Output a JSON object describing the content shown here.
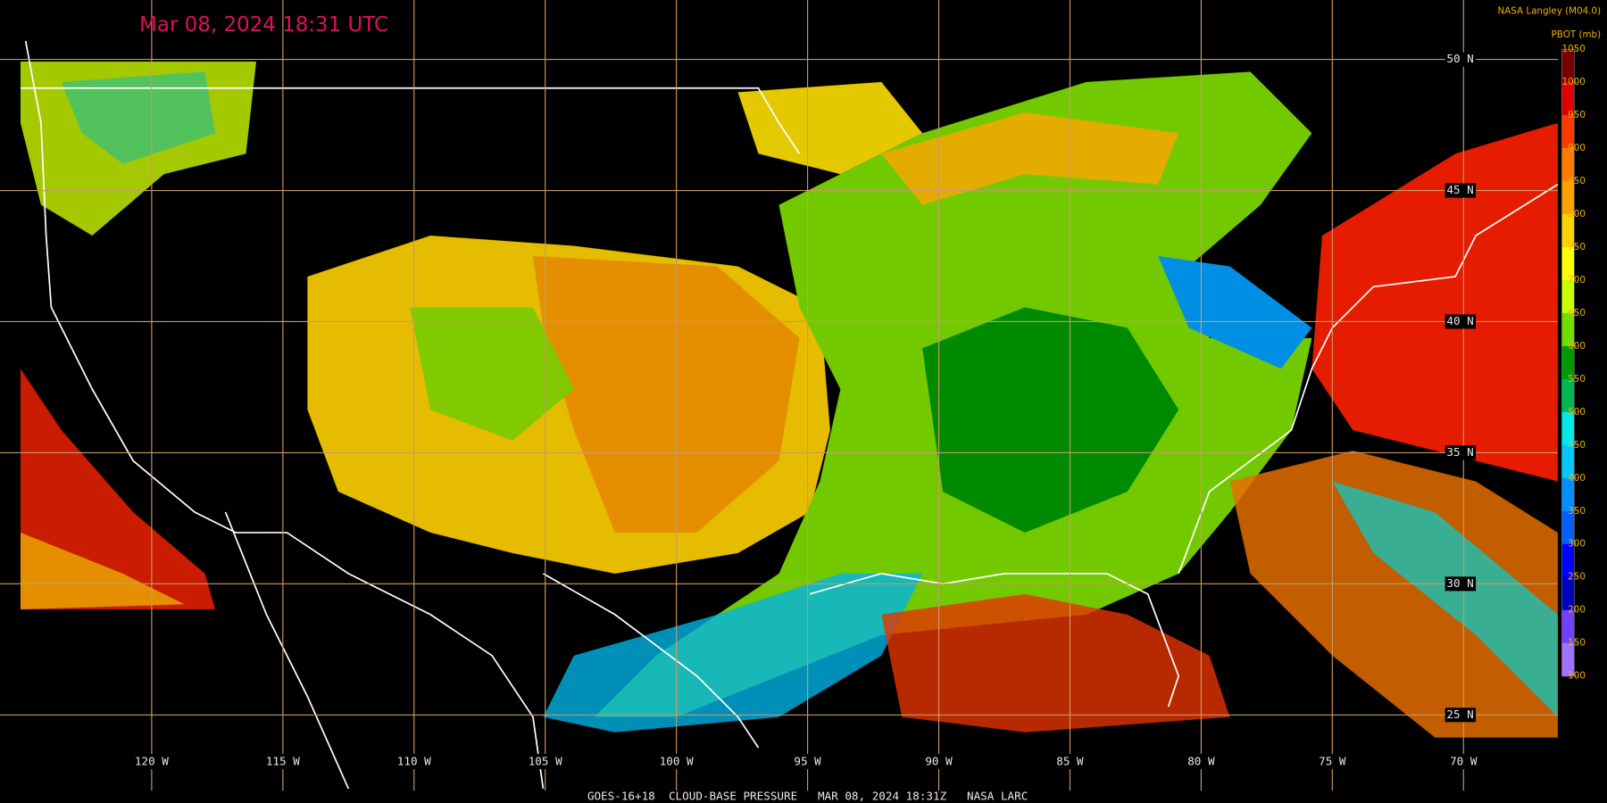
{
  "header": {
    "timestamp": "Mar 08, 2024 18:31 UTC",
    "credit": "NASA Langley (M04.0)"
  },
  "map": {
    "latitudes": [
      {
        "value": 50,
        "label": "50 N"
      },
      {
        "value": 45,
        "label": "45 N"
      },
      {
        "value": 40,
        "label": "40 N"
      },
      {
        "value": 35,
        "label": "35 N"
      },
      {
        "value": 30,
        "label": "30 N"
      },
      {
        "value": 25,
        "label": "25 N"
      }
    ],
    "longitudes": [
      {
        "value": -120,
        "label": "120 W"
      },
      {
        "value": -115,
        "label": "115 W"
      },
      {
        "value": -110,
        "label": "110 W"
      },
      {
        "value": -105,
        "label": "105 W"
      },
      {
        "value": -100,
        "label": "100 W"
      },
      {
        "value": -95,
        "label": "95 W"
      },
      {
        "value": -90,
        "label": "90 W"
      },
      {
        "value": -85,
        "label": "85 W"
      },
      {
        "value": -80,
        "label": "80 W"
      },
      {
        "value": -75,
        "label": "75 W"
      },
      {
        "value": -70,
        "label": "70 W"
      }
    ],
    "grid_color": "#c8996a"
  },
  "colorbar": {
    "label": "PBOT (mb)",
    "ticks": [
      1050,
      1000,
      950,
      900,
      850,
      800,
      750,
      700,
      650,
      600,
      550,
      500,
      450,
      400,
      350,
      300,
      250,
      200,
      150,
      100
    ],
    "colors": [
      "#7a0000",
      "#e00000",
      "#ff3a00",
      "#ff7a00",
      "#ffa200",
      "#ffd200",
      "#ffff00",
      "#c8ff00",
      "#70e000",
      "#009a00",
      "#00b850",
      "#00e8e8",
      "#00c8ff",
      "#0090ff",
      "#0060ff",
      "#0000ff",
      "#0000c0",
      "#7040ff",
      "#a070ff"
    ]
  },
  "footer": {
    "caption": "GOES-16+18  CLOUD-BASE PRESSURE   MAR 08, 2024 18:31Z   NASA LARC"
  }
}
